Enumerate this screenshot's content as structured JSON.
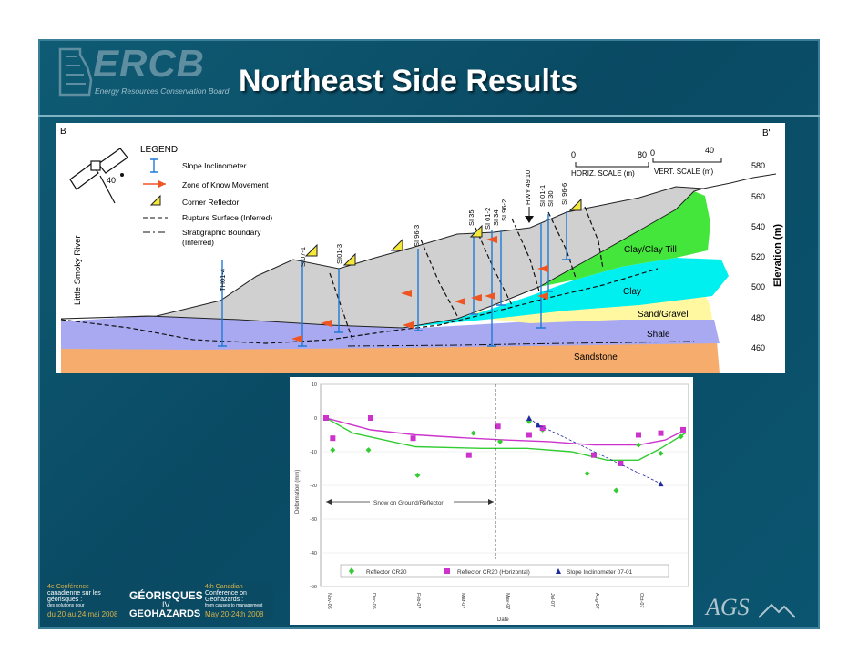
{
  "slide": {
    "title": "Northeast Side Results",
    "logo": {
      "name": "ERCB",
      "subtitle": "Energy Resources Conservation Board"
    },
    "conference": {
      "fr_line1": "4e Conférence",
      "fr_line2": "canadienne sur les",
      "fr_line3": "géorisques :",
      "fr_line4": "des solutions pour",
      "fr_date": "du 20 au 24 mai 2008",
      "name_top": "GÉORISQUES",
      "name_mid": "IV",
      "name_bottom": "GEOHAZARDS",
      "en_line1": "4th Canadian",
      "en_line2": "Conference on",
      "en_line3": "Geohazards :",
      "en_line4": "from causes to management",
      "en_date": "May 20-24th 2008"
    },
    "footer_logo": "AGS",
    "colors": {
      "panel": "#0c5069",
      "title": "#ffffff",
      "clay_till": "#44e63c",
      "clay": "#00f0f0",
      "sand": "#fff8a0",
      "shale": "#a9a9f2",
      "sandstone": "#f6ac6c"
    }
  },
  "section": {
    "left_label": "B",
    "right_label": "B'",
    "river_label": "Little Smoky River",
    "angle_label": "40",
    "legend": {
      "title": "LEGEND",
      "items": [
        "Slope Inclinometer",
        "Zone of Know Movement",
        "Corner Reflector",
        "Rupture Surface (Inferred)",
        "Stratigraphic Boundary",
        "(Inferred)"
      ]
    },
    "horiz_scale": {
      "start": "0",
      "end": "80",
      "label": "HORIZ. SCALE (m)"
    },
    "vert_scale": {
      "start": "0",
      "end": "40",
      "label": "VERT. SCALE (m)"
    },
    "elevation_title": "Elevation (m)",
    "elevations": [
      "580",
      "560",
      "540",
      "520",
      "500",
      "480",
      "460"
    ],
    "layers": [
      "Clay/Clay Till",
      "Clay",
      "Sand/Gravel",
      "Shale",
      "Sandstone"
    ],
    "instruments": [
      "TH01-4",
      "SI07-1",
      "SI01-3",
      "SI 96-3",
      "SI 35",
      "SI 01-2",
      "SI 34",
      "SI 96-2",
      "HWY 49:10",
      "SI 01-1",
      "SI 30",
      "SI 96-6"
    ]
  },
  "chart_data": {
    "type": "scatter",
    "xlabel": "Date",
    "ylabel": "Deformation (mm)",
    "ylim": [
      -50,
      10
    ],
    "yticks": [
      "10",
      "0",
      "-10",
      "-20",
      "-30",
      "-40",
      "-50"
    ],
    "categories": [
      "Nov-06",
      "Dec-06",
      "Feb-07",
      "Mar-07",
      "May-07",
      "Jul-07",
      "Aug-07",
      "Oct-07"
    ],
    "annotation": "Snow on Ground/Reflector",
    "series": [
      {
        "name": "Reflector CR20",
        "marker": "diamond",
        "color": "#33cc33",
        "x": [
          0,
          0.15,
          0.95,
          2.05,
          3.3,
          3.9,
          4.55,
          4.85,
          5.85,
          6.5,
          7.0,
          7.5,
          7.95
        ],
        "y": [
          0,
          -9.5,
          -9.5,
          -17,
          -4.5,
          -7,
          -1,
          -3.5,
          -16.5,
          -21.5,
          -8,
          -10.5,
          -5.5
        ]
      },
      {
        "name": "Reflector CR20 (Horizontal)",
        "marker": "square",
        "color": "#cc33cc",
        "x": [
          0,
          0.15,
          1.0,
          1.95,
          3.2,
          3.85,
          4.55,
          4.85,
          6.0,
          6.6,
          7.0,
          7.5,
          8.0
        ],
        "y": [
          0,
          -6,
          0,
          -6,
          -11,
          -2.5,
          -5,
          -3,
          -11,
          -13.5,
          -5,
          -4.5,
          -3.5
        ]
      },
      {
        "name": "Slope Inclinometer 07-01",
        "marker": "triangle",
        "color": "#1f2a9e",
        "x": [
          4.55,
          4.75,
          7.5
        ],
        "y": [
          0,
          -2,
          -19.5
        ]
      }
    ],
    "trendlines": [
      {
        "color": "#33cc33",
        "x": [
          0,
          0.6,
          2,
          3.5,
          4.5,
          5.5,
          6.3,
          7,
          7.5,
          8.05
        ],
        "y": [
          0,
          -4.5,
          -8.5,
          -9,
          -9,
          -10,
          -12.5,
          -12.5,
          -9,
          -4.5
        ]
      },
      {
        "color": "#cc33cc",
        "x": [
          0,
          1,
          2,
          3,
          4,
          5,
          6,
          7,
          7.6,
          8.05
        ],
        "y": [
          0,
          -3.5,
          -5,
          -5.8,
          -6.5,
          -7,
          -8,
          -8,
          -6.5,
          -3.5
        ]
      }
    ],
    "legend": [
      "Reflector CR20",
      "Reflector CR20 (Horizontal)",
      "Slope Inclinometer 07-01"
    ]
  }
}
